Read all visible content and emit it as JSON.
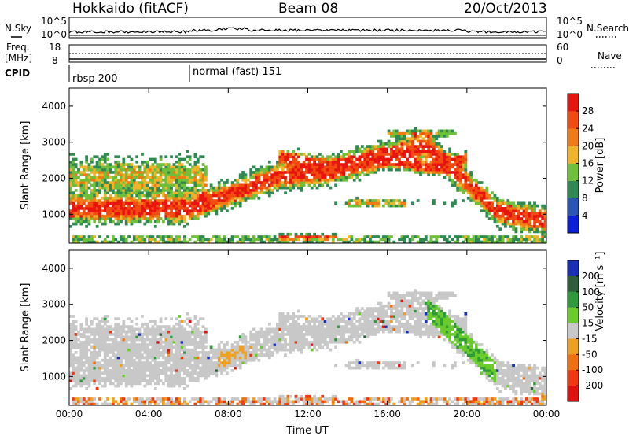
{
  "header": {
    "station": "Hokkaido (fitACF)",
    "beam": "Beam 08",
    "date": "20/Oct/2013"
  },
  "nsky_panel": {
    "left_label": "N.Sky",
    "right_label": "N.Search",
    "left_ticks": [
      "10^5",
      "10^0"
    ],
    "right_ticks": [
      "10^5",
      "10^0"
    ]
  },
  "freq_panel": {
    "left_label_line1": "Freq.",
    "left_label_line2": "[MHz]",
    "right_label": "Nave",
    "left_ticks": [
      "18",
      "8"
    ],
    "right_ticks": [
      "60",
      "0"
    ]
  },
  "cpid_panel": {
    "label": "CPID",
    "modes": [
      {
        "name": "rbsp 200",
        "start_hour": 0
      },
      {
        "name": "normal (fast) 151",
        "start_hour": 6
      }
    ]
  },
  "colors": {
    "power": [
      "#0a1fd8",
      "#2c56b5",
      "#2e8a52",
      "#6fbf3a",
      "#f0b42a",
      "#f07a14",
      "#f24b10",
      "#e8140e"
    ],
    "velocity": [
      "#1a2fb8",
      "#2c5f3a",
      "#2f9a3c",
      "#6acb2c",
      "#c8c8c8",
      "#f0a020",
      "#f07010",
      "#f23810",
      "#e01010"
    ]
  },
  "chart_data": [
    {
      "type": "heatmap",
      "name": "Power",
      "xlabel": "",
      "ylabel": "Slant Range [km]",
      "xlim_hours": [
        0,
        24
      ],
      "ylim": [
        200,
        4500
      ],
      "yticks": [
        1000,
        2000,
        3000,
        4000
      ],
      "colorbar_label": "Power [dB]",
      "colorbar_ticks": [
        4,
        8,
        12,
        16,
        20,
        24,
        28
      ],
      "colorbar_range": [
        0,
        32
      ]
    },
    {
      "type": "heatmap",
      "name": "Velocity",
      "xlabel": "Time UT",
      "ylabel": "Slant Range [km]",
      "xlim_hours": [
        0,
        24
      ],
      "ylim": [
        200,
        4500
      ],
      "yticks": [
        1000,
        2000,
        3000,
        4000
      ],
      "xticks": [
        "00:00",
        "04:00",
        "08:00",
        "12:00",
        "16:00",
        "20:00",
        "00:00"
      ],
      "colorbar_label": "Velocity [m s⁻¹]",
      "colorbar_ticks": [
        "200",
        "100",
        "50",
        "15",
        "-15",
        "-50",
        "-100",
        "-200"
      ]
    }
  ]
}
